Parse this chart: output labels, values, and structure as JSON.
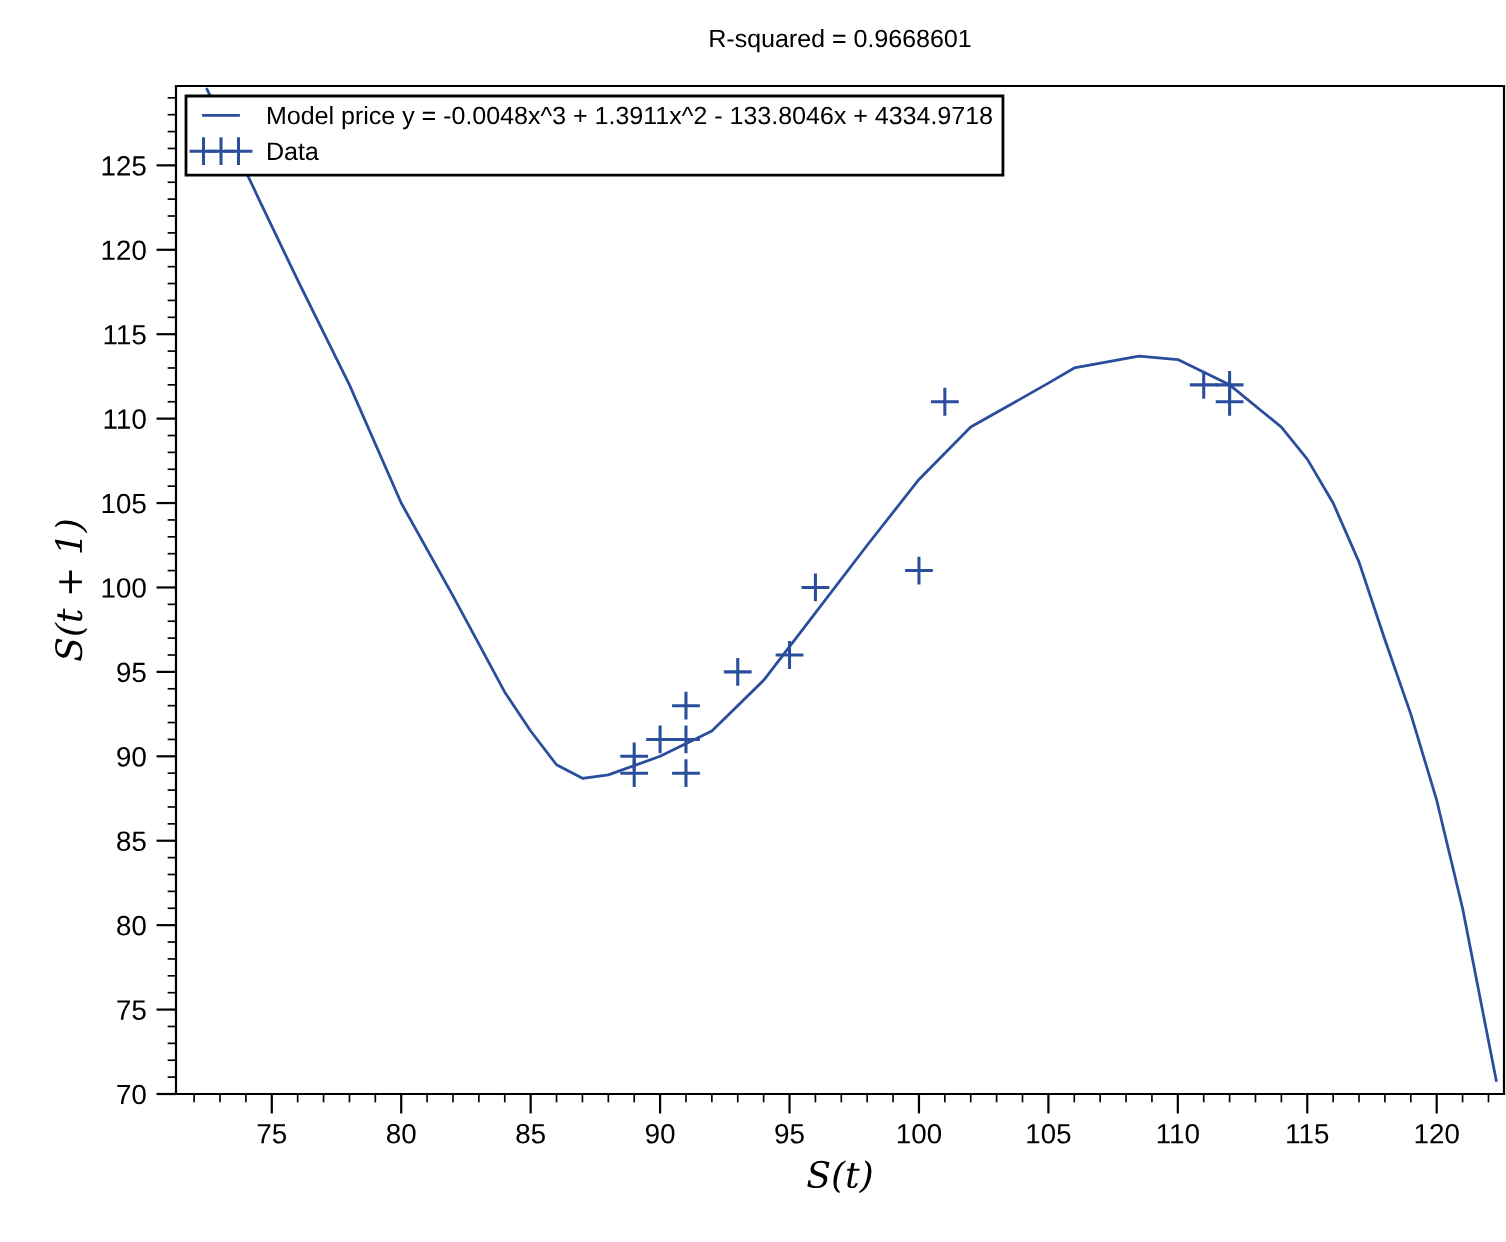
{
  "chart_data": {
    "type": "line",
    "title": "R-squared = 0.9668601",
    "xlabel": "S(t)",
    "ylabel": "S(t + 1)",
    "xlim": [
      71.3,
      122.6
    ],
    "ylim": [
      70,
      129.7
    ],
    "xticks": [
      75,
      80,
      85,
      90,
      95,
      100,
      105,
      110,
      115,
      120
    ],
    "yticks": [
      70,
      75,
      80,
      85,
      90,
      95,
      100,
      105,
      110,
      115,
      120,
      125
    ],
    "grid": false,
    "legend": "top left",
    "series": [
      {
        "name": "Model price y = -0.0048x^3 + 1.3911x^2 - 133.8046x + 4334.9718",
        "color": "#2a4d9c",
        "marker": "none",
        "line_style": "solid",
        "x": [
          72.5,
          74.5,
          76,
          78,
          80,
          82,
          84,
          85,
          86,
          87,
          88,
          90,
          92,
          94,
          96,
          98,
          100,
          102,
          105,
          106,
          108.5,
          110,
          112,
          114,
          115,
          116,
          117,
          118,
          119,
          120,
          121,
          122.3
        ],
        "values": [
          129.5,
          123,
          118.2,
          112,
          105,
          99.5,
          93.8,
          91.5,
          89.5,
          88.7,
          88.9,
          90,
          91.5,
          94.5,
          98.5,
          102.5,
          106.4,
          109.5,
          112.1,
          113,
          113.7,
          113.5,
          112,
          109.5,
          107.6,
          105,
          101.5,
          96.9,
          92.5,
          87.4,
          81,
          70.8
        ]
      },
      {
        "name": "Data",
        "type": "scatter",
        "color": "#2a4d9c",
        "marker": "cross",
        "x": [
          89,
          89,
          90,
          91,
          91,
          91,
          93,
          95,
          96,
          100,
          101,
          111,
          112,
          112
        ],
        "values": [
          89,
          90,
          91,
          89,
          91,
          93,
          95,
          96,
          100,
          101,
          111,
          112,
          112,
          111
        ]
      }
    ]
  }
}
